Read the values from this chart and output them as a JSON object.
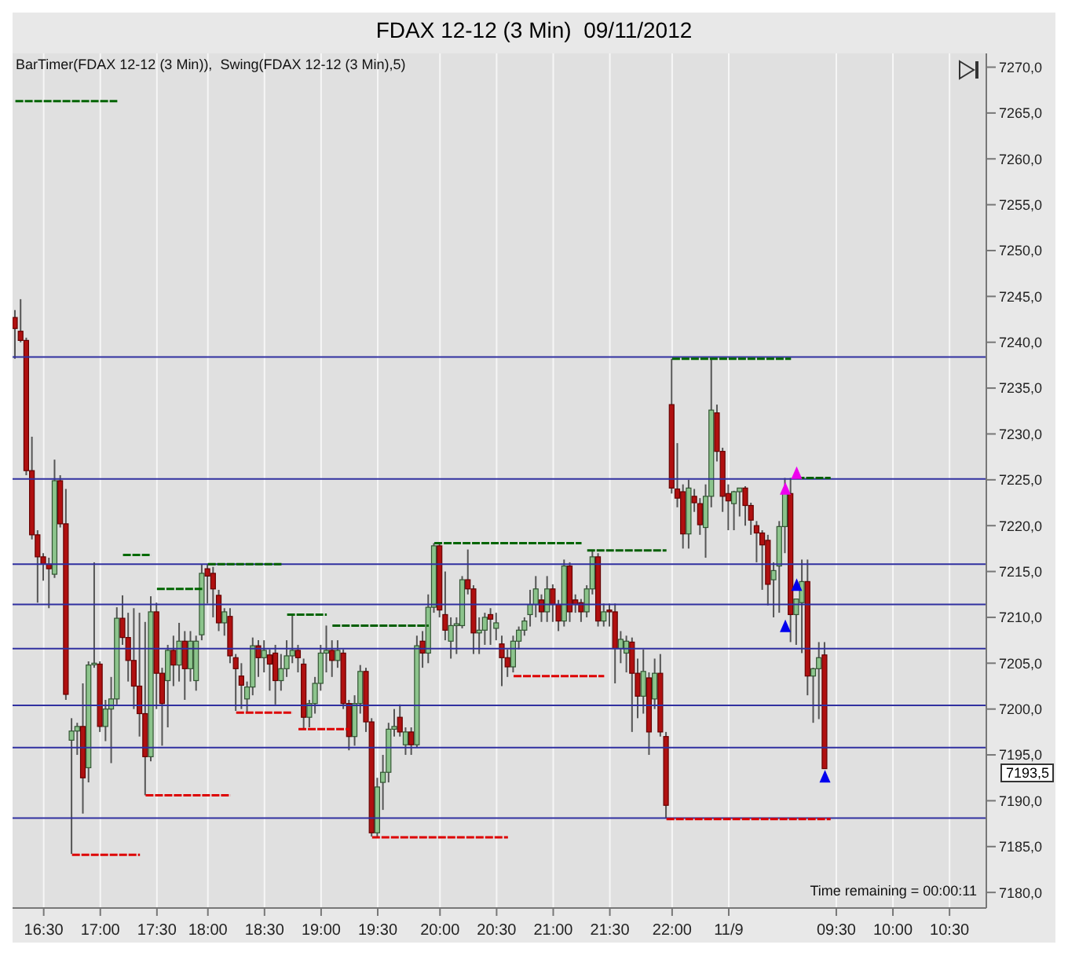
{
  "chart_data": {
    "type": "candlestick",
    "title": "FDAX 12-12 (3 Min)  09/11/2012",
    "annotations": [
      "BarTimer(FDAX 12-12 (3 Min)),  Swing(FDAX 12-12 (3 Min),5)",
      "Time remaining = 00:00:11",
      "7193,5"
    ],
    "categories": [
      null,
      null,
      null,
      null,
      null,
      "16:30",
      null,
      null,
      null,
      null,
      null,
      null,
      null,
      null,
      null,
      "17:00",
      null,
      null,
      null,
      null,
      null,
      null,
      null,
      null,
      null,
      "17:30",
      null,
      null,
      null,
      null,
      null,
      null,
      null,
      null,
      "18:00",
      null,
      null,
      null,
      null,
      null,
      null,
      null,
      null,
      null,
      "18:30",
      null,
      null,
      null,
      null,
      null,
      null,
      null,
      null,
      null,
      "19:00",
      null,
      null,
      null,
      null,
      null,
      null,
      null,
      null,
      null,
      "19:30",
      null,
      null,
      null,
      null,
      null,
      null,
      null,
      null,
      null,
      null,
      "20:00",
      null,
      null,
      null,
      null,
      null,
      null,
      null,
      null,
      null,
      "20:30",
      null,
      null,
      null,
      null,
      null,
      null,
      null,
      null,
      null,
      "21:00",
      null,
      null,
      null,
      null,
      null,
      null,
      null,
      null,
      null,
      "21:30",
      null,
      null,
      null,
      null,
      null,
      null,
      null,
      null,
      null,
      null,
      "22:00",
      null,
      null,
      null,
      null,
      null,
      null,
      null,
      null,
      null,
      "11/9",
      null,
      null,
      null,
      null,
      null,
      null,
      null,
      null,
      null,
      null,
      null,
      null,
      null,
      null,
      null,
      null,
      null,
      null,
      "09:30",
      null,
      null,
      null,
      null,
      null,
      null,
      null,
      null,
      null,
      "10:00",
      null,
      null,
      null,
      null,
      null,
      null,
      null,
      null,
      null,
      "10:30",
      null,
      null,
      null,
      null,
      null,
      null
    ],
    "ohlc": [
      [
        7242.7,
        7243.5,
        7238.2,
        7241.5
      ],
      [
        7241.2,
        7244.7,
        7240,
        7240.2
      ],
      [
        7240.2,
        7240.5,
        7225.5,
        7226
      ],
      [
        7226,
        7229.7,
        7218.5,
        7219
      ],
      [
        7219,
        7219.5,
        7211.6,
        7216.6
      ],
      [
        7216.6,
        7217,
        7214,
        7215.8
      ],
      [
        7215.8,
        7216.5,
        7211,
        7215.3
      ],
      [
        7214.7,
        7227.2,
        7214.3,
        7224.9
      ],
      [
        7224.9,
        7225.5,
        7219.8,
        7220.2
      ],
      [
        7220.2,
        7224,
        7201,
        7201.6
      ],
      [
        7196.6,
        7199,
        7184.2,
        7197.6
      ],
      [
        7197.6,
        7198.5,
        7195,
        7198.1
      ],
      [
        7198.1,
        7202.8,
        7188.6,
        7192.5
      ],
      [
        7193.6,
        7205.2,
        7192,
        7204.8
      ],
      [
        7204.9,
        7216,
        7204.5,
        7205
      ],
      [
        7204.9,
        7205.2,
        7197.5,
        7198.1
      ],
      [
        7198.1,
        7201,
        7196.5,
        7200
      ],
      [
        7200,
        7203.5,
        7194.1,
        7201.1
      ],
      [
        7201.1,
        7211.1,
        7200.5,
        7209.9
      ],
      [
        7209.9,
        7212.4,
        7207,
        7207.8
      ],
      [
        7207.8,
        7210.5,
        7203,
        7205.3
      ],
      [
        7205.3,
        7211,
        7200,
        7202.5
      ],
      [
        7202.5,
        7210.5,
        7197,
        7199.5
      ],
      [
        7199.5,
        7209.5,
        7190.6,
        7194.8
      ],
      [
        7194.8,
        7212.3,
        7194.3,
        7210.6
      ],
      [
        7210.6,
        7211.6,
        7200,
        7203.9
      ],
      [
        7203.9,
        7204.5,
        7196,
        7200.6
      ],
      [
        7203.1,
        7207,
        7198,
        7206.4
      ],
      [
        7206.4,
        7208,
        7202.5,
        7204.8
      ],
      [
        7204.8,
        7209.4,
        7203,
        7207.4
      ],
      [
        7207.4,
        7208.5,
        7201,
        7204.4
      ],
      [
        7204.4,
        7208.5,
        7203,
        7207.4
      ],
      [
        7203.1,
        7208,
        7202,
        7207.4
      ],
      [
        7208.1,
        7215.8,
        7207.5,
        7214.8
      ],
      [
        7215.3,
        7215.8,
        7211.5,
        7214.5
      ],
      [
        7214.8,
        7215.5,
        7210,
        7213.1
      ],
      [
        7212.4,
        7213,
        7208.5,
        7209.4
      ],
      [
        7209.4,
        7211,
        7208,
        7210.6
      ],
      [
        7210.1,
        7211,
        7205,
        7205.8
      ],
      [
        7205.6,
        7206,
        7199.8,
        7204.4
      ],
      [
        7203.6,
        7205,
        7200,
        7202.6
      ],
      [
        7201.1,
        7203,
        7199.6,
        7202.4
      ],
      [
        7202.4,
        7207.8,
        7201.5,
        7206.9
      ],
      [
        7206.9,
        7207.5,
        7203.5,
        7205.6
      ],
      [
        7205.6,
        7207.5,
        7204,
        7206.4
      ],
      [
        7205.9,
        7206.5,
        7202,
        7204.9
      ],
      [
        7206.1,
        7207,
        7200.5,
        7203.1
      ],
      [
        7203.1,
        7206,
        7202,
        7204.4
      ],
      [
        7204.4,
        7207.5,
        7203.5,
        7205.8
      ],
      [
        7205.8,
        7210.3,
        7205,
        7206.4
      ],
      [
        7206.4,
        7207,
        7204,
        7205.6
      ],
      [
        7204.9,
        7205.5,
        7197.8,
        7199.1
      ],
      [
        7199.1,
        7201,
        7198,
        7200.6
      ],
      [
        7200.6,
        7203.5,
        7199.5,
        7202.8
      ],
      [
        7202.8,
        7207,
        7202,
        7206.1
      ],
      [
        7206.1,
        7209.1,
        7204,
        7206.4
      ],
      [
        7206.4,
        7207.5,
        7203.5,
        7205.3
      ],
      [
        7205.3,
        7207.5,
        7204.5,
        7206.4
      ],
      [
        7206.1,
        7206.5,
        7200,
        7200.6
      ],
      [
        7200.6,
        7201,
        7195.5,
        7197
      ],
      [
        7197,
        7201.5,
        7196,
        7200.6
      ],
      [
        7200.6,
        7204.8,
        7199.5,
        7204.1
      ],
      [
        7204.1,
        7204.5,
        7197.5,
        7198.6
      ],
      [
        7198.6,
        7199,
        7186.1,
        7186.5
      ],
      [
        7186.5,
        7192.5,
        7186.1,
        7191.5
      ],
      [
        7192,
        7195,
        7189,
        7193.1
      ],
      [
        7193.1,
        7198.5,
        7192,
        7197.8
      ],
      [
        7197.8,
        7200,
        7197,
        7198.1
      ],
      [
        7199.1,
        7200.5,
        7197,
        7197.5
      ],
      [
        7196.1,
        7198,
        7195,
        7197.5
      ],
      [
        7197.5,
        7198,
        7195,
        7196.1
      ],
      [
        7196.1,
        7208,
        7195.8,
        7206.9
      ],
      [
        7207.4,
        7208.5,
        7204.5,
        7206.1
      ],
      [
        7206.1,
        7212.5,
        7205,
        7211.1
      ],
      [
        7211.1,
        7218.1,
        7210.5,
        7217.8
      ],
      [
        7217.8,
        7218.1,
        7210,
        7210.8
      ],
      [
        7210.3,
        7215,
        7207.5,
        7208.6
      ],
      [
        7207.4,
        7210,
        7205.5,
        7209.1
      ],
      [
        7209.1,
        7210,
        7206,
        7209.3
      ],
      [
        7209.1,
        7214.5,
        7208.8,
        7214.1
      ],
      [
        7214.1,
        7217.4,
        7212.5,
        7213.1
      ],
      [
        7213.1,
        7213.5,
        7206,
        7208.3
      ],
      [
        7208.3,
        7210,
        7206,
        7208.6
      ],
      [
        7208.6,
        7210.5,
        7207,
        7210
      ],
      [
        7210.3,
        7211,
        7207,
        7209.8
      ],
      [
        7208.8,
        7210.5,
        7207.5,
        7209.4
      ],
      [
        7207.1,
        7208,
        7202.5,
        7205.6
      ],
      [
        7205.6,
        7206.5,
        7203.5,
        7204.6
      ],
      [
        7204.6,
        7208,
        7204,
        7207.4
      ],
      [
        7207.4,
        7209,
        7206.5,
        7208.6
      ],
      [
        7208.6,
        7210,
        7208,
        7209.6
      ],
      [
        7210.3,
        7213,
        7209,
        7211.4
      ],
      [
        7211.4,
        7214.5,
        7210,
        7213.1
      ],
      [
        7211.9,
        7212.5,
        7209.5,
        7210.6
      ],
      [
        7210.6,
        7214.5,
        7209.5,
        7213.1
      ],
      [
        7213.1,
        7213.6,
        7209.5,
        7211.4
      ],
      [
        7211.4,
        7211.9,
        7208.5,
        7209.6
      ],
      [
        7209.6,
        7216.3,
        7209,
        7215.6
      ],
      [
        7215.6,
        7216,
        7209.5,
        7210.6
      ],
      [
        7211.9,
        7212.5,
        7210.5,
        7211.4
      ],
      [
        7211.6,
        7212,
        7209.5,
        7210.6
      ],
      [
        7210.6,
        7213.5,
        7210,
        7213.1
      ],
      [
        7213.1,
        7217.3,
        7212.5,
        7216.6
      ],
      [
        7216.6,
        7217,
        7209,
        7209.6
      ],
      [
        7209.6,
        7211.5,
        7209,
        7210.6
      ],
      [
        7210.8,
        7211.5,
        7209,
        7210.6
      ],
      [
        7210.6,
        7211.5,
        7202.8,
        7206.6
      ],
      [
        7206.6,
        7208.5,
        7205,
        7207.6
      ],
      [
        7206.1,
        7208,
        7204,
        7207.4
      ],
      [
        7207.3,
        7207.8,
        7197.5,
        7203.9
      ],
      [
        7203.9,
        7205.5,
        7199,
        7201.4
      ],
      [
        7201.4,
        7206.5,
        7199.5,
        7204.1
      ],
      [
        7203.4,
        7204,
        7195,
        7197.5
      ],
      [
        7201.1,
        7205.5,
        7200,
        7203.9
      ],
      [
        7203.9,
        7206,
        7197,
        7197.5
      ],
      [
        7197,
        7197.5,
        7188.1,
        7189.5
      ],
      [
        7233.2,
        7238.2,
        7223.5,
        7224.1
      ],
      [
        7224,
        7229,
        7222,
        7223
      ],
      [
        7223.7,
        7224.5,
        7217.5,
        7219.1
      ],
      [
        7219.1,
        7225,
        7217.5,
        7224.1
      ],
      [
        7223.2,
        7224,
        7221.5,
        7222.5
      ],
      [
        7222.4,
        7223,
        7219,
        7220.1
      ],
      [
        7219.8,
        7224.5,
        7216.5,
        7223.2
      ],
      [
        7223.2,
        7238.2,
        7222,
        7232.6
      ],
      [
        7232.3,
        7233.2,
        7227,
        7228.1
      ],
      [
        7228.1,
        7228.5,
        7221.5,
        7223.2
      ],
      [
        7223.5,
        7224.5,
        7219.5,
        7222.7
      ],
      [
        7222.4,
        7223.8,
        7219.5,
        7223.7
      ],
      [
        7223.7,
        7224.1,
        7221,
        7224.1
      ],
      [
        7224.1,
        7224.3,
        7220,
        7222.2
      ],
      [
        7222.2,
        7222.5,
        7219,
        7220.6
      ],
      [
        7220,
        7220.5,
        7216,
        7219.2
      ],
      [
        7219.2,
        7219.5,
        7213,
        7217.9
      ],
      [
        7218.4,
        7219,
        7211.3,
        7213.6
      ],
      [
        7214.1,
        7216,
        7210,
        7215.1
      ],
      [
        7215.6,
        7220.5,
        7210.5,
        7219.9
      ],
      [
        7219.9,
        7225.2,
        7217,
        7223.7
      ],
      [
        7223.5,
        7225.2,
        7207.3,
        7210.3
      ],
      [
        7210.3,
        7212,
        7207,
        7212
      ],
      [
        7211.6,
        7216.3,
        7206.1,
        7213.9
      ],
      [
        7213.9,
        7216.3,
        7201.5,
        7203.6
      ],
      [
        7203.6,
        7204.5,
        7198.5,
        7204.4
      ],
      [
        7204.4,
        7207.3,
        7198.9,
        7205.6
      ],
      [
        7205.9,
        7207.3,
        7193.5,
        7193.5
      ],
      null,
      null,
      null,
      null,
      null,
      null,
      null,
      null,
      null,
      null,
      null,
      null,
      null,
      null,
      null,
      null,
      null,
      null,
      null,
      null,
      null,
      null,
      null,
      null,
      null,
      null,
      null,
      null
    ],
    "series": [
      {
        "type": "line",
        "color": "#006400",
        "line_style": "dashed",
        "values": [
          7266.3,
          7266.3,
          7266.3,
          7266.3,
          7266.3,
          7266.3,
          7266.3,
          7266.3,
          7266.3,
          7266.3,
          7266.3,
          7266.3,
          7266.3,
          7266.3,
          7266.3,
          7266.3,
          7266.3,
          7266.3,
          7266.3,
          null,
          null,
          null,
          null,
          null,
          null,
          7213.1,
          7213.1,
          7213.1,
          7213.1,
          7213.1,
          7213.1,
          7213.1,
          7213.1,
          7213.1,
          null,
          null,
          null,
          null,
          null,
          null,
          null,
          null,
          null,
          null,
          null,
          null,
          null,
          null,
          7210.3,
          7210.3,
          7210.3,
          7210.3,
          7210.3,
          7210.3,
          7210.3,
          7210.3,
          null,
          null,
          null,
          null,
          null,
          null,
          null,
          null,
          null,
          null,
          null,
          null,
          null,
          null,
          null,
          null,
          null,
          null,
          7218.1,
          7218.1,
          7218.1,
          7218.1,
          7218.1,
          7218.1,
          7218.1,
          7218.1,
          7218.1,
          7218.1,
          7218.1,
          7218.1,
          7218.1,
          7218.1,
          7218.1,
          7218.1,
          7218.1,
          7218.1,
          7218.1,
          7218.1,
          7218.1,
          7218.1,
          7218.1,
          7218.1,
          7218.1,
          7218.1,
          7218.1,
          null,
          null,
          null,
          null,
          null,
          null,
          null,
          null,
          null,
          null,
          null,
          null,
          null,
          null,
          null,
          7238.2,
          7238.2,
          7238.2,
          7238.2,
          7238.2,
          7238.2,
          7238.2,
          7238.2,
          7238.2,
          7238.2,
          7238.2,
          7238.2,
          7238.2,
          7238.2,
          7238.2,
          7238.2,
          7238.2,
          7238.2,
          7238.2,
          7238.2,
          7238.2,
          7238.2,
          null,
          null,
          null,
          null,
          null,
          null,
          null,
          null,
          null,
          null,
          null,
          null,
          null,
          null,
          null,
          null,
          null,
          null,
          null,
          null,
          null,
          null,
          null,
          null,
          null,
          null,
          null,
          null,
          null,
          null,
          null,
          null,
          null,
          null
        ]
      },
      {
        "type": "line",
        "color": "#006a00",
        "line_style": "dashed",
        "values": [
          null,
          null,
          null,
          null,
          null,
          null,
          null,
          null,
          null,
          null,
          null,
          null,
          null,
          null,
          null,
          null,
          null,
          null,
          null,
          7216.8,
          7216.8,
          7216.8,
          7216.8,
          7216.8,
          7216.8,
          null,
          null,
          null,
          null,
          null,
          null,
          null,
          null,
          null,
          null,
          null,
          null,
          null,
          null,
          null,
          null,
          null,
          null,
          null,
          null,
          null,
          null,
          null,
          null,
          null,
          null,
          null,
          null,
          null,
          null,
          null,
          null,
          null,
          null,
          null,
          null,
          null,
          null,
          null,
          null,
          null,
          null,
          null,
          null,
          null,
          null,
          null,
          null,
          null,
          null,
          null,
          null,
          null,
          null,
          null,
          null,
          null,
          null,
          null,
          null,
          null,
          null,
          null,
          null,
          null,
          null,
          null,
          null,
          null,
          null,
          null,
          null,
          null,
          null,
          null,
          null,
          null,
          null,
          null,
          null,
          null,
          null,
          null,
          null,
          null,
          null,
          null,
          null,
          null,
          null,
          null,
          null,
          null,
          null,
          null,
          null,
          null,
          null,
          null,
          null,
          null,
          null,
          null,
          null,
          null,
          null,
          null,
          null,
          null,
          null,
          null,
          null,
          null,
          null,
          null,
          null,
          null,
          null,
          null,
          null,
          null,
          null,
          null,
          null,
          null,
          null,
          null,
          null,
          null,
          null,
          null,
          null,
          null,
          null,
          null,
          null,
          null,
          null,
          null,
          null,
          null,
          null,
          null,
          null,
          null,
          null,
          null
        ]
      },
      {
        "type": "line",
        "color": "#005e00",
        "line_style": "dashed",
        "values": [
          null,
          null,
          null,
          null,
          null,
          null,
          null,
          null,
          null,
          null,
          null,
          null,
          null,
          null,
          null,
          null,
          null,
          null,
          null,
          null,
          null,
          null,
          null,
          null,
          null,
          null,
          null,
          null,
          null,
          null,
          null,
          null,
          null,
          null,
          7215.8,
          7215.8,
          7215.8,
          7215.8,
          7215.8,
          7215.8,
          7215.8,
          7215.8,
          7215.8,
          7215.8,
          7215.8,
          7215.8,
          7215.8,
          7215.8,
          null,
          null,
          null,
          null,
          null,
          null,
          null,
          null,
          7209.1,
          7209.1,
          7209.1,
          7209.1,
          7209.1,
          7209.1,
          7209.1,
          7209.1,
          7209.1,
          7209.1,
          7209.1,
          7209.1,
          7209.1,
          7209.1,
          7209.1,
          7209.1,
          7209.1,
          7209.1,
          null,
          null,
          null,
          null,
          null,
          null,
          null,
          null,
          null,
          null,
          null,
          null,
          null,
          null,
          null,
          null,
          null,
          null,
          null,
          null,
          null,
          null,
          null,
          null,
          null,
          null,
          null,
          7217.3,
          7217.3,
          7217.3,
          7217.3,
          7217.3,
          7217.3,
          7217.3,
          7217.3,
          7217.3,
          7217.3,
          7217.3,
          7217.3,
          7217.3,
          7217.3,
          7217.3,
          null,
          null,
          null,
          null,
          null,
          null,
          null,
          null,
          null,
          null,
          null,
          null,
          null,
          null,
          null,
          null,
          null,
          null,
          null,
          null,
          null,
          null,
          7225.2,
          7225.2,
          7225.2,
          7225.2,
          7225.2,
          7225.2,
          7225.2,
          null,
          null,
          null,
          null,
          null,
          null,
          null,
          null,
          null,
          null,
          null,
          null,
          null,
          null,
          null,
          null,
          null,
          null,
          null,
          null,
          null,
          null,
          null,
          null,
          null,
          null,
          null
        ]
      },
      {
        "type": "line",
        "color": "#dd0000",
        "line_style": "dashed",
        "values": [
          null,
          null,
          null,
          null,
          null,
          null,
          null,
          null,
          null,
          null,
          7184.1,
          7184.1,
          7184.1,
          7184.1,
          7184.1,
          7184.1,
          7184.1,
          7184.1,
          7184.1,
          7184.1,
          7184.1,
          7184.1,
          7184.1,
          null,
          null,
          null,
          null,
          null,
          null,
          null,
          null,
          null,
          null,
          null,
          null,
          null,
          null,
          null,
          null,
          7199.6,
          7199.6,
          7199.6,
          7199.6,
          7199.6,
          7199.6,
          7199.6,
          7199.6,
          7199.6,
          7199.6,
          7199.6,
          null,
          null,
          null,
          null,
          null,
          null,
          null,
          null,
          null,
          null,
          null,
          null,
          null,
          7186,
          7186,
          7186,
          7186,
          7186,
          7186,
          7186,
          7186,
          7186,
          7186,
          7186,
          7186,
          7186,
          7186,
          7186,
          7186,
          7186,
          7186,
          7186,
          7186,
          7186,
          7186,
          7186,
          7186,
          7186,
          null,
          null,
          null,
          null,
          null,
          null,
          null,
          null,
          null,
          null,
          null,
          null,
          null,
          null,
          null,
          null,
          null,
          null,
          null,
          null,
          null,
          null,
          null,
          null,
          null,
          null,
          null,
          7188,
          7188,
          7188,
          7188,
          7188,
          7188,
          7188,
          7188,
          7188,
          7188,
          7188,
          7188,
          7188,
          7188,
          7188,
          7188,
          7188,
          7188,
          7188,
          7188,
          7188,
          7188,
          7188,
          7188,
          7188,
          7188,
          7188,
          7188,
          7188,
          7188,
          null,
          null,
          null,
          null,
          null,
          null,
          null,
          null,
          null,
          null,
          null,
          null,
          null,
          null,
          null,
          null,
          null,
          null,
          null,
          null,
          null,
          null,
          null,
          null,
          null,
          null,
          null
        ]
      },
      {
        "type": "line",
        "color": "#dd0000",
        "line_style": "dashed",
        "values": [
          null,
          null,
          null,
          null,
          null,
          null,
          null,
          null,
          null,
          null,
          null,
          null,
          null,
          null,
          null,
          null,
          null,
          null,
          null,
          null,
          null,
          null,
          null,
          7190.6,
          7190.6,
          7190.6,
          7190.6,
          7190.6,
          7190.6,
          7190.6,
          7190.6,
          7190.6,
          7190.6,
          7190.6,
          7190.6,
          7190.6,
          7190.6,
          7190.6,
          7190.6,
          null,
          null,
          null,
          null,
          null,
          null,
          null,
          null,
          null,
          null,
          null,
          7197.8,
          7197.8,
          7197.8,
          7197.8,
          7197.8,
          7197.8,
          7197.8,
          7197.8,
          7197.8,
          7197.8,
          null,
          null,
          null,
          null,
          null,
          null,
          null,
          null,
          null,
          null,
          null,
          null,
          null,
          null,
          null,
          null,
          null,
          null,
          null,
          null,
          null,
          null,
          null,
          null,
          null,
          null,
          null,
          null,
          7203.6,
          7203.6,
          7203.6,
          7203.6,
          7203.6,
          7203.6,
          7203.6,
          7203.6,
          7203.6,
          7203.6,
          7203.6,
          7203.6,
          7203.6,
          7203.6,
          7203.6,
          7203.6,
          7203.6,
          null,
          null,
          null,
          null,
          null,
          null,
          null,
          null,
          null,
          null,
          null,
          null,
          null,
          null,
          null,
          null,
          null,
          null,
          null,
          null,
          null,
          null,
          null,
          null,
          null,
          null,
          null,
          null,
          null,
          null,
          null,
          null,
          null,
          null,
          null,
          null,
          null,
          null,
          null,
          null,
          null,
          null,
          null,
          null,
          null,
          null,
          null,
          null,
          null,
          null,
          null,
          null,
          null,
          null,
          null,
          null,
          null,
          null,
          null,
          null,
          null,
          null,
          null,
          null,
          null,
          null,
          null
        ]
      },
      {
        "type": "scatter",
        "color": "#0000ee",
        "marker": "triangle",
        "values": [
          null,
          null,
          null,
          null,
          null,
          null,
          null,
          null,
          null,
          null,
          null,
          null,
          null,
          null,
          null,
          null,
          null,
          null,
          null,
          null,
          null,
          null,
          null,
          null,
          null,
          null,
          null,
          null,
          null,
          null,
          null,
          null,
          null,
          null,
          null,
          null,
          null,
          null,
          null,
          null,
          null,
          null,
          null,
          null,
          null,
          null,
          null,
          null,
          null,
          null,
          null,
          null,
          null,
          null,
          null,
          null,
          null,
          null,
          null,
          null,
          null,
          null,
          null,
          null,
          null,
          null,
          null,
          null,
          null,
          null,
          null,
          null,
          null,
          null,
          null,
          null,
          null,
          null,
          null,
          null,
          null,
          null,
          null,
          null,
          null,
          null,
          null,
          null,
          null,
          null,
          null,
          null,
          null,
          null,
          null,
          null,
          null,
          null,
          null,
          null,
          null,
          null,
          null,
          null,
          null,
          null,
          null,
          null,
          null,
          null,
          null,
          null,
          null,
          null,
          null,
          null,
          null,
          null,
          null,
          null,
          null,
          null,
          null,
          null,
          null,
          null,
          null,
          null,
          null,
          null,
          null,
          null,
          null,
          null,
          null,
          null,
          7208.9,
          null,
          7213.4,
          null,
          null,
          null,
          null,
          7192.5,
          null,
          null,
          null,
          null,
          null,
          null,
          null,
          null,
          null,
          null,
          null,
          null,
          null,
          null,
          null,
          null,
          null,
          null,
          null,
          null,
          null,
          null,
          null,
          null,
          null,
          null,
          null,
          null
        ]
      },
      {
        "type": "scatter",
        "color": "#ee00ee",
        "marker": "triangle",
        "values": [
          null,
          null,
          null,
          null,
          null,
          null,
          null,
          null,
          null,
          null,
          null,
          null,
          null,
          null,
          null,
          null,
          null,
          null,
          null,
          null,
          null,
          null,
          null,
          null,
          null,
          null,
          null,
          null,
          null,
          null,
          null,
          null,
          null,
          null,
          null,
          null,
          null,
          null,
          null,
          null,
          null,
          null,
          null,
          null,
          null,
          null,
          null,
          null,
          null,
          null,
          null,
          null,
          null,
          null,
          null,
          null,
          null,
          null,
          null,
          null,
          null,
          null,
          null,
          null,
          null,
          null,
          null,
          null,
          null,
          null,
          null,
          null,
          null,
          null,
          null,
          null,
          null,
          null,
          null,
          null,
          null,
          null,
          null,
          null,
          null,
          null,
          null,
          null,
          null,
          null,
          null,
          null,
          null,
          null,
          null,
          null,
          null,
          null,
          null,
          null,
          null,
          null,
          null,
          null,
          null,
          null,
          null,
          null,
          null,
          null,
          null,
          null,
          null,
          null,
          null,
          null,
          null,
          null,
          null,
          null,
          null,
          null,
          null,
          null,
          null,
          null,
          null,
          null,
          null,
          null,
          null,
          null,
          null,
          null,
          null,
          null,
          7223.9,
          null,
          7225.6,
          null,
          null,
          null,
          null,
          null,
          null,
          null,
          null,
          null,
          null,
          null,
          null,
          null,
          null,
          null,
          null,
          null,
          null,
          null,
          null,
          null,
          null,
          null,
          null,
          null,
          null,
          null,
          null,
          null,
          null,
          null,
          null,
          null
        ]
      }
    ],
    "ref_lines": [
      {
        "axis": "y",
        "value": 7238.4,
        "color": "#3030a0"
      },
      {
        "axis": "y",
        "value": 7225.1,
        "color": "#3030a0"
      },
      {
        "axis": "y",
        "value": 7215.8,
        "color": "#3030a0"
      },
      {
        "axis": "y",
        "value": 7211.4,
        "color": "#3030a0"
      },
      {
        "axis": "y",
        "value": 7206.6,
        "color": "#3030a0"
      },
      {
        "axis": "y",
        "value": 7200.4,
        "color": "#3030a0"
      },
      {
        "axis": "y",
        "value": 7195.8,
        "color": "#3030a0"
      },
      {
        "axis": "y",
        "value": 7188.1,
        "color": "#3030a0"
      }
    ],
    "ylim": [
      7178.3,
      7271.5
    ],
    "yticks": [
      {
        "value": 7180,
        "label": "7180,0"
      },
      {
        "value": 7185,
        "label": "7185,0"
      },
      {
        "value": 7190,
        "label": "7190,0"
      },
      {
        "value": 7195,
        "label": "7195,0"
      },
      {
        "value": 7200,
        "label": "7200,0"
      },
      {
        "value": 7205,
        "label": "7205,0"
      },
      {
        "value": 7210,
        "label": "7210,0"
      },
      {
        "value": 7215,
        "label": "7215,0"
      },
      {
        "value": 7220,
        "label": "7220,0"
      },
      {
        "value": 7225,
        "label": "7225,0"
      },
      {
        "value": 7230,
        "label": "7230,0"
      },
      {
        "value": 7235,
        "label": "7235,0"
      },
      {
        "value": 7240,
        "label": "7240,0"
      },
      {
        "value": 7245,
        "label": "7245,0"
      },
      {
        "value": 7250,
        "label": "7250,0"
      },
      {
        "value": 7255,
        "label": "7255,0"
      },
      {
        "value": 7260,
        "label": "7260,0"
      },
      {
        "value": 7265,
        "label": "7265,0"
      },
      {
        "value": 7270,
        "label": "7270,0"
      }
    ],
    "grid": "x"
  }
}
